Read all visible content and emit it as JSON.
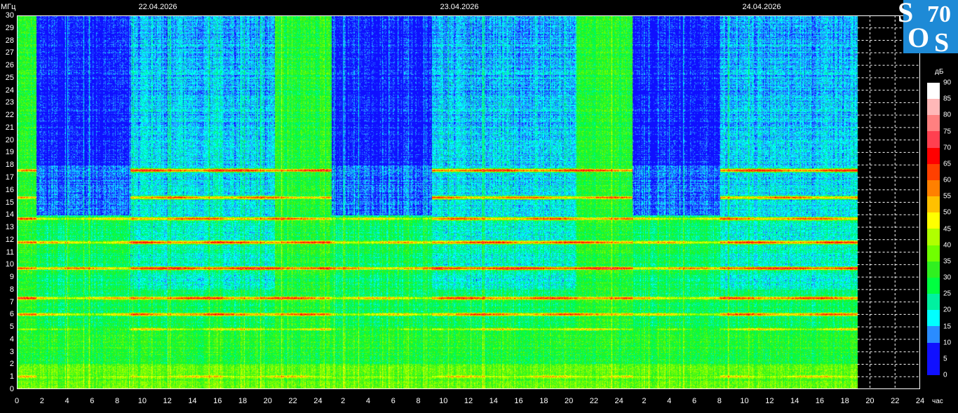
{
  "chart_data": {
    "type": "heatmap",
    "title": "",
    "ylabel": "МГц",
    "xlabel": "час",
    "ylim": [
      0,
      30
    ],
    "yticks": [
      0,
      1,
      2,
      3,
      4,
      5,
      6,
      7,
      8,
      9,
      10,
      11,
      12,
      13,
      14,
      15,
      16,
      17,
      18,
      19,
      20,
      21,
      22,
      23,
      24,
      25,
      26,
      27,
      28,
      29,
      30
    ],
    "xticks": [
      "0",
      "2",
      "4",
      "6",
      "8",
      "10",
      "12",
      "14",
      "16",
      "18",
      "20",
      "22",
      "24",
      "2",
      "4",
      "6",
      "8",
      "10",
      "12",
      "14",
      "16",
      "18",
      "20",
      "22",
      "24",
      "2",
      "4",
      "6",
      "8",
      "10",
      "12",
      "14",
      "16",
      "18",
      "20",
      "22",
      "24"
    ],
    "xlim_hours": [
      0,
      72
    ],
    "data_end_hour": 67,
    "dates": [
      "22.04.2026",
      "23.04.2026",
      "24.04.2026"
    ],
    "colorbar": {
      "unit": "дБ",
      "range": [
        0,
        90
      ],
      "ticks": [
        "90",
        "85",
        "80",
        "75",
        "70",
        "65",
        "60",
        "55",
        "50",
        "45",
        "40",
        "35",
        "30",
        "25",
        "20",
        "15",
        "10",
        "5",
        "0"
      ],
      "colors": [
        "#1010ff",
        "#1010ff",
        "#2a8cff",
        "#00ffff",
        "#00f0a0",
        "#00ff40",
        "#30f020",
        "#70ff00",
        "#b0ff00",
        "#ffff00",
        "#ffc000",
        "#ff8000",
        "#ff4000",
        "#ff0000",
        "#ff4050",
        "#ff8080",
        "#ffb8b8",
        "#ffffff"
      ]
    },
    "time_segments_hours": [
      {
        "from": 0,
        "to": 1.5,
        "state": "transition",
        "high_band_db": 30
      },
      {
        "from": 1.5,
        "to": 9,
        "state": "night",
        "high_band_db": 6
      },
      {
        "from": 9,
        "to": 20.5,
        "state": "day",
        "high_band_db": 18
      },
      {
        "from": 20.5,
        "to": 25,
        "state": "transition",
        "high_band_db": 28
      },
      {
        "from": 25,
        "to": 33,
        "state": "night",
        "high_band_db": 6
      },
      {
        "from": 33,
        "to": 44.5,
        "state": "day",
        "high_band_db": 18
      },
      {
        "from": 44.5,
        "to": 49,
        "state": "transition",
        "high_band_db": 28
      },
      {
        "from": 49,
        "to": 56,
        "state": "night",
        "high_band_db": 6
      },
      {
        "from": 56,
        "to": 67,
        "state": "day",
        "high_band_db": 18
      }
    ],
    "low_band_db": 30,
    "signal_bands_mhz_db": [
      {
        "f": 17.6,
        "db": 62
      },
      {
        "f": 15.4,
        "db": 57
      },
      {
        "f": 13.7,
        "db": 57
      },
      {
        "f": 11.8,
        "db": 62
      },
      {
        "f": 9.7,
        "db": 66
      },
      {
        "f": 7.3,
        "db": 62
      },
      {
        "f": 6.0,
        "db": 60
      },
      {
        "f": 4.8,
        "db": 45
      },
      {
        "f": 1.0,
        "db": 48
      }
    ]
  },
  "logo": {
    "text": "SOS70"
  }
}
